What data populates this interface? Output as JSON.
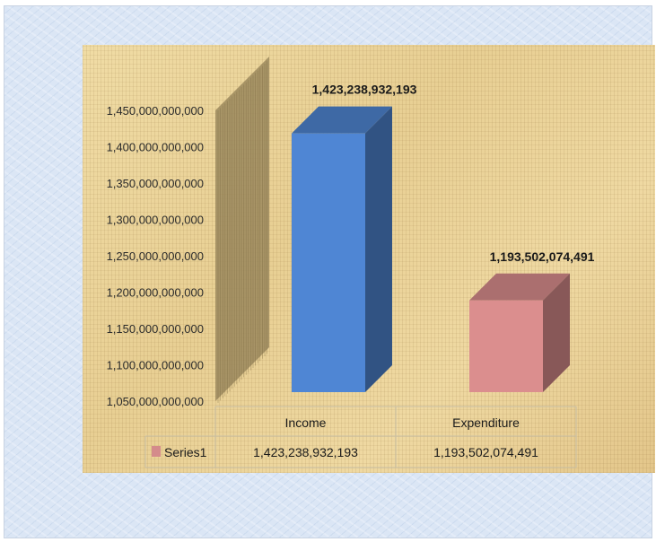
{
  "chart_data": {
    "type": "bar",
    "style": "3d-column-with-data-table",
    "categories": [
      "Income",
      "Expenditure"
    ],
    "series": [
      {
        "name": "Series1",
        "values": [
          1423238932193,
          1193502074491
        ],
        "value_labels": [
          "1,423,238,932,193",
          "1,193,502,074,491"
        ],
        "colors": [
          "#4f86d4",
          "#db8e8e"
        ],
        "legend_color": "#d48b8b"
      }
    ],
    "ylim": [
      1050000000000,
      1450000000000
    ],
    "yticks": [
      {
        "value": 1050000000000,
        "label": "1,050,000,000,000"
      },
      {
        "value": 1100000000000,
        "label": "1,100,000,000,000"
      },
      {
        "value": 1150000000000,
        "label": "1,150,000,000,000"
      },
      {
        "value": 1200000000000,
        "label": "1,200,000,000,000"
      },
      {
        "value": 1250000000000,
        "label": "1,250,000,000,000"
      },
      {
        "value": 1300000000000,
        "label": "1,300,000,000,000"
      },
      {
        "value": 1350000000000,
        "label": "1,350,000,000,000"
      },
      {
        "value": 1400000000000,
        "label": "1,400,000,000,000"
      },
      {
        "value": 1450000000000,
        "label": "1,450,000,000,000"
      }
    ],
    "grid": false,
    "legend": "in data table",
    "data_table": true,
    "title": "",
    "xlabel": "",
    "ylabel": ""
  }
}
